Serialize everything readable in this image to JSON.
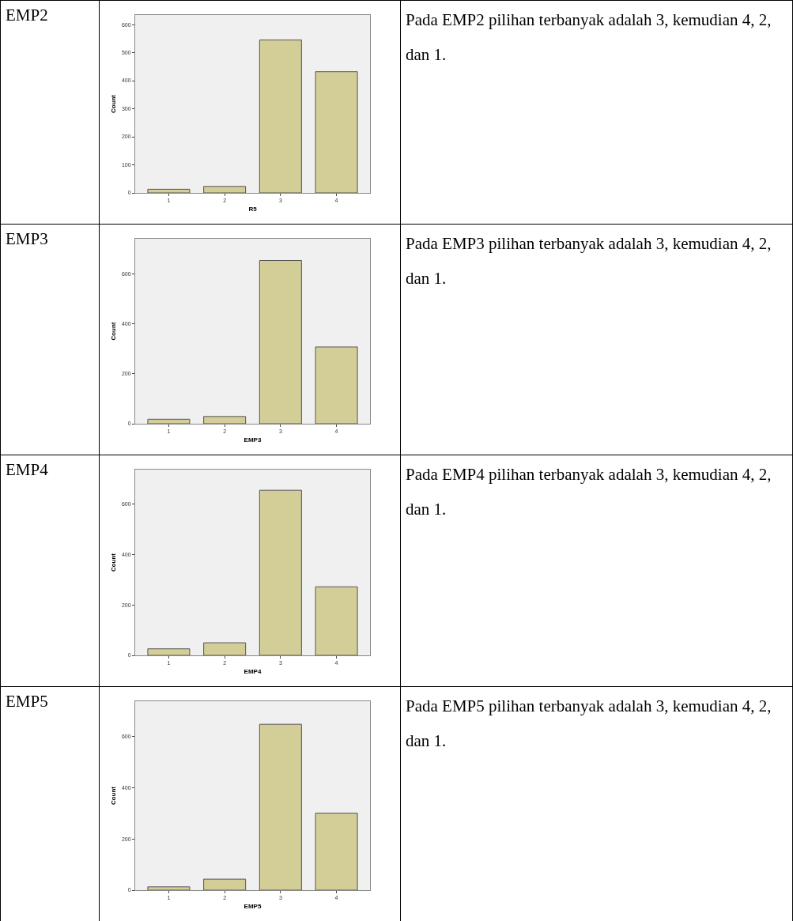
{
  "chart_data": [
    {
      "type": "bar",
      "title": "EMP2",
      "annotations": [
        "Pada EMP2 pilihan terbanyak adalah 3, kemudian 4, 2, dan 1."
      ],
      "categories": [
        "1",
        "2",
        "3",
        "4"
      ],
      "values": [
        13,
        23,
        545,
        432
      ],
      "color": "#d3ce97",
      "xlabel": "R5",
      "ylabel": "Count",
      "ylim": [
        0,
        634
      ],
      "yticks": [
        0,
        100,
        200,
        300,
        400,
        500,
        600
      ]
    },
    {
      "type": "bar",
      "title": "EMP3",
      "annotations": [
        "Pada EMP3 pilihan terbanyak adalah 3, kemudian 4, 2, dan 1."
      ],
      "categories": [
        "1",
        "2",
        "3",
        "4"
      ],
      "values": [
        18,
        29,
        653,
        307
      ],
      "color": "#d3ce97",
      "xlabel": "EMP3",
      "ylabel": "Count",
      "ylim": [
        0,
        740
      ],
      "yticks": [
        0,
        200,
        400,
        600
      ]
    },
    {
      "type": "bar",
      "title": "EMP4",
      "annotations": [
        "Pada EMP4 pilihan terbanyak adalah 3, kemudian 4, 2, dan 1."
      ],
      "categories": [
        "1",
        "2",
        "3",
        "4"
      ],
      "values": [
        26,
        50,
        655,
        272
      ],
      "color": "#d3ce97",
      "xlabel": "EMP4",
      "ylabel": "Count",
      "ylim": [
        0,
        737
      ],
      "yticks": [
        0,
        200,
        400,
        600
      ]
    },
    {
      "type": "bar",
      "title": "EMP5",
      "annotations": [
        "Pada EMP5 pilihan terbanyak adalah 3, kemudian 4, 2, dan 1."
      ],
      "categories": [
        "1",
        "2",
        "3",
        "4"
      ],
      "values": [
        13,
        43,
        648,
        301
      ],
      "color": "#d3ce97",
      "xlabel": "EMP5",
      "ylabel": "Count",
      "ylim": [
        0,
        738
      ],
      "yticks": [
        0,
        200,
        400,
        600
      ]
    }
  ]
}
